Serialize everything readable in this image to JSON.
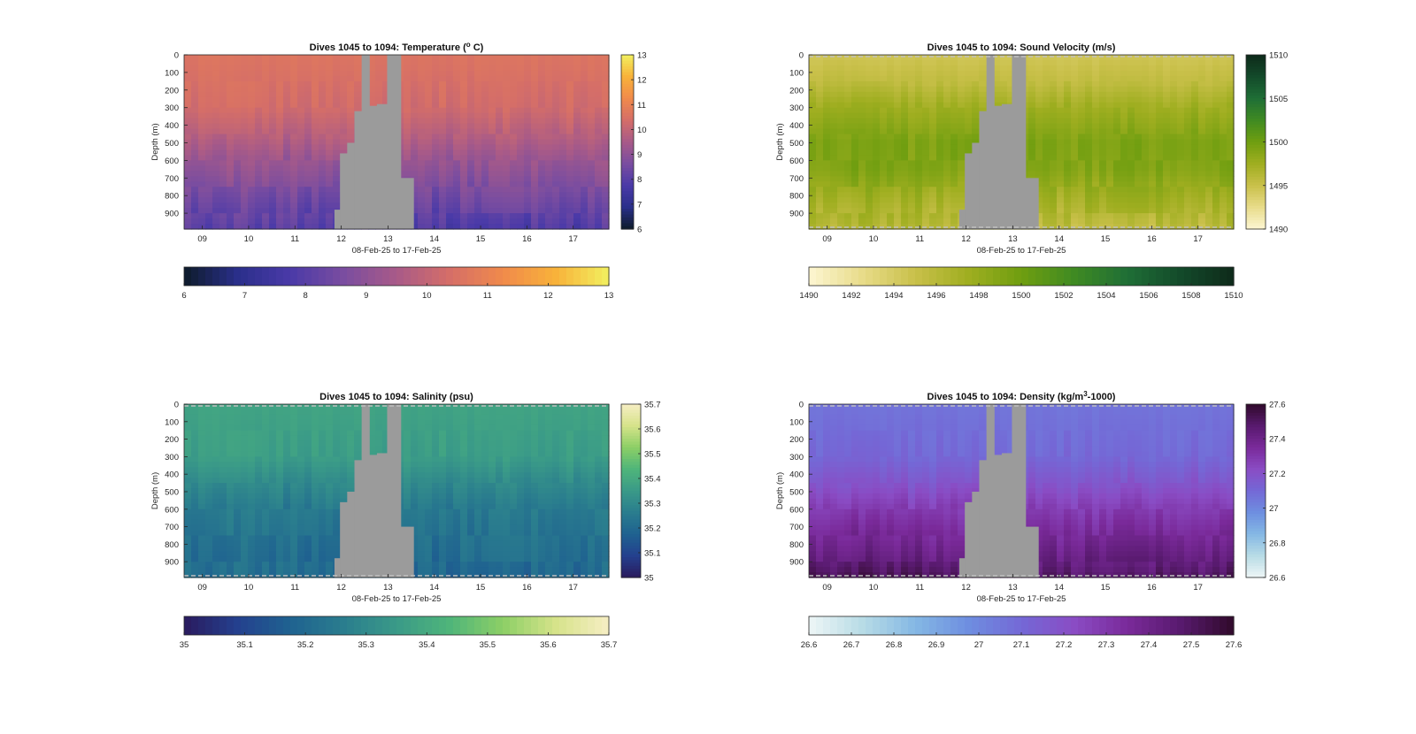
{
  "figure": {
    "background": "#ffffff",
    "nodata_color": "#9b9b9b"
  },
  "chart_data": [
    {
      "id": "temperature",
      "type": "heatmap",
      "title": "Dives 1045 to 1094: Temperature (° C)",
      "title_main": "Dives 1045 to 1094: Temperature (",
      "title_sup": "o",
      "title_tail": " C)",
      "xlabel": "08-Feb-25 to 17-Feb-25",
      "ylabel": "Depth (m)",
      "xticks": [
        "09",
        "10",
        "11",
        "12",
        "13",
        "14",
        "15",
        "16",
        "17"
      ],
      "yticks": [
        0,
        100,
        200,
        300,
        400,
        500,
        600,
        700,
        800,
        900
      ],
      "ylim": [
        0,
        990
      ],
      "colorbar_ticks": [
        13,
        12,
        11,
        10,
        9,
        8,
        7,
        6
      ],
      "hcolorbar_ticks": [
        6,
        7,
        8,
        9,
        10,
        11,
        12,
        13
      ],
      "clim": [
        6,
        13
      ],
      "colormap": [
        "#0d1b2a",
        "#2a2f8a",
        "#4a3aa8",
        "#7a4da0",
        "#a85a88",
        "#d56e68",
        "#f08a4b",
        "#f8b23a",
        "#f2f060"
      ],
      "profile": [
        [
          0,
          10.6
        ],
        [
          300,
          10.3
        ],
        [
          450,
          9.8
        ],
        [
          600,
          9.2
        ],
        [
          750,
          8.7
        ],
        [
          900,
          8.2
        ],
        [
          990,
          7.9
        ]
      ]
    },
    {
      "id": "sound_velocity",
      "type": "heatmap",
      "title": "Dives 1045 to 1094: Sound Velocity (m/s)",
      "title_main": "Dives 1045 to 1094: Sound Velocity (m/s)",
      "title_sup": "",
      "title_tail": "",
      "xlabel": "08-Feb-25 to 17-Feb-25",
      "ylabel": "Depth (m)",
      "xticks": [
        "09",
        "10",
        "11",
        "12",
        "13",
        "14",
        "15",
        "16",
        "17"
      ],
      "yticks": [
        0,
        100,
        200,
        300,
        400,
        500,
        600,
        700,
        800,
        900
      ],
      "ylim": [
        0,
        990
      ],
      "colorbar_ticks": [
        1510,
        1505,
        1500,
        1495,
        1490
      ],
      "hcolorbar_ticks": [
        1490,
        1492,
        1494,
        1496,
        1498,
        1500,
        1502,
        1504,
        1506,
        1508,
        1510
      ],
      "clim": [
        1490,
        1510
      ],
      "colormap": [
        "#fdf6d2",
        "#e8dc8a",
        "#c9c04a",
        "#9fae20",
        "#6f9e10",
        "#3f8a22",
        "#1f6e36",
        "#134a2a",
        "#0e2a1a"
      ],
      "profile": [
        [
          0,
          1494.5
        ],
        [
          150,
          1495.5
        ],
        [
          300,
          1497.5
        ],
        [
          500,
          1499.3
        ],
        [
          650,
          1499.0
        ],
        [
          800,
          1497.5
        ],
        [
          990,
          1495.8
        ]
      ]
    },
    {
      "id": "salinity",
      "type": "heatmap",
      "title": "Dives 1045 to 1094: Salinity (psu)",
      "title_main": "Dives 1045 to 1094: Salinity (psu)",
      "title_sup": "",
      "title_tail": "",
      "xlabel": "08-Feb-25 to 17-Feb-25",
      "ylabel": "Depth (m)",
      "xticks": [
        "09",
        "10",
        "11",
        "12",
        "13",
        "14",
        "15",
        "16",
        "17"
      ],
      "yticks": [
        0,
        100,
        200,
        300,
        400,
        500,
        600,
        700,
        800,
        900
      ],
      "ylim": [
        0,
        990
      ],
      "colorbar_ticks": [
        35.7,
        35.6,
        35.5,
        35.4,
        35.3,
        35.2,
        35.1,
        35
      ],
      "hcolorbar_ticks": [
        35,
        35.1,
        35.2,
        35.3,
        35.4,
        35.5,
        35.6,
        35.7
      ],
      "clim": [
        35,
        35.7
      ],
      "colormap": [
        "#2a1a5e",
        "#24408e",
        "#1f6290",
        "#2a7d8e",
        "#3a9a88",
        "#4fb57a",
        "#8ccf66",
        "#d6e38a",
        "#f6eec4"
      ],
      "profile": [
        [
          0,
          35.38
        ],
        [
          300,
          35.36
        ],
        [
          450,
          35.3
        ],
        [
          600,
          35.25
        ],
        [
          800,
          35.22
        ],
        [
          990,
          35.2
        ]
      ]
    },
    {
      "id": "density",
      "type": "heatmap",
      "title": "Dives 1045 to 1094: Density (kg/m³-1000)",
      "title_main": "Dives 1045 to 1094: Density (kg/m",
      "title_sup": "3",
      "title_tail": "-1000)",
      "xlabel": "08-Feb-25 to 17-Feb-25",
      "ylabel": "Depth (m)",
      "xticks": [
        "09",
        "10",
        "11",
        "12",
        "13",
        "14",
        "15",
        "16",
        "17"
      ],
      "yticks": [
        0,
        100,
        200,
        300,
        400,
        500,
        600,
        700,
        800,
        900
      ],
      "ylim": [
        0,
        990
      ],
      "colorbar_ticks": [
        27.6,
        27.4,
        27.2,
        27,
        26.8,
        26.6
      ],
      "hcolorbar_ticks": [
        26.6,
        26.7,
        26.8,
        26.9,
        27,
        27.1,
        27.2,
        27.3,
        27.4,
        27.5,
        27.6
      ],
      "clim": [
        26.6,
        27.6
      ],
      "colormap": [
        "#eef6f6",
        "#b8dce6",
        "#85b8e4",
        "#6e8ee0",
        "#7468d6",
        "#8a4cc4",
        "#7a2a9a",
        "#581a6e",
        "#300a2a"
      ],
      "profile": [
        [
          0,
          27.06
        ],
        [
          300,
          27.1
        ],
        [
          450,
          27.18
        ],
        [
          600,
          27.28
        ],
        [
          750,
          27.36
        ],
        [
          900,
          27.44
        ],
        [
          990,
          27.5
        ]
      ]
    }
  ]
}
